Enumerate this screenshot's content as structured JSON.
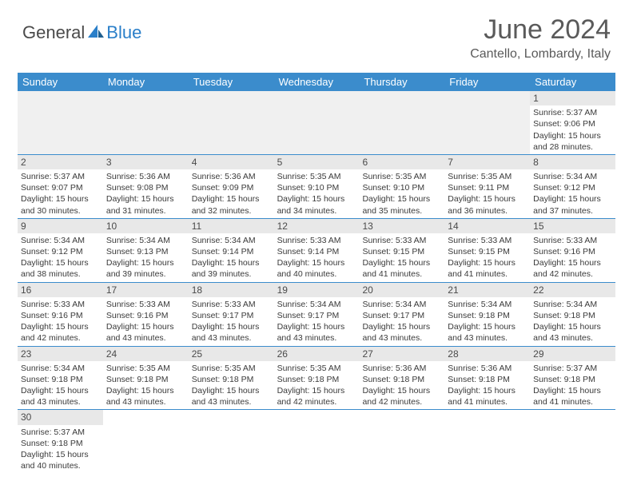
{
  "logo": {
    "text1": "General",
    "text2": "Blue"
  },
  "header": {
    "title": "June 2024",
    "location": "Cantello, Lombardy, Italy"
  },
  "colors": {
    "header_bg": "#3b8ccc",
    "header_text": "#ffffff",
    "day_num_bg": "#e8e8e8",
    "text": "#3a3a3a",
    "border": "#3b8ccc"
  },
  "dayNames": [
    "Sunday",
    "Monday",
    "Tuesday",
    "Wednesday",
    "Thursday",
    "Friday",
    "Saturday"
  ],
  "weeks": [
    [
      null,
      null,
      null,
      null,
      null,
      null,
      {
        "n": "1",
        "sunrise": "Sunrise: 5:37 AM",
        "sunset": "Sunset: 9:06 PM",
        "daylight": "Daylight: 15 hours and 28 minutes."
      }
    ],
    [
      {
        "n": "2",
        "sunrise": "Sunrise: 5:37 AM",
        "sunset": "Sunset: 9:07 PM",
        "daylight": "Daylight: 15 hours and 30 minutes."
      },
      {
        "n": "3",
        "sunrise": "Sunrise: 5:36 AM",
        "sunset": "Sunset: 9:08 PM",
        "daylight": "Daylight: 15 hours and 31 minutes."
      },
      {
        "n": "4",
        "sunrise": "Sunrise: 5:36 AM",
        "sunset": "Sunset: 9:09 PM",
        "daylight": "Daylight: 15 hours and 32 minutes."
      },
      {
        "n": "5",
        "sunrise": "Sunrise: 5:35 AM",
        "sunset": "Sunset: 9:10 PM",
        "daylight": "Daylight: 15 hours and 34 minutes."
      },
      {
        "n": "6",
        "sunrise": "Sunrise: 5:35 AM",
        "sunset": "Sunset: 9:10 PM",
        "daylight": "Daylight: 15 hours and 35 minutes."
      },
      {
        "n": "7",
        "sunrise": "Sunrise: 5:35 AM",
        "sunset": "Sunset: 9:11 PM",
        "daylight": "Daylight: 15 hours and 36 minutes."
      },
      {
        "n": "8",
        "sunrise": "Sunrise: 5:34 AM",
        "sunset": "Sunset: 9:12 PM",
        "daylight": "Daylight: 15 hours and 37 minutes."
      }
    ],
    [
      {
        "n": "9",
        "sunrise": "Sunrise: 5:34 AM",
        "sunset": "Sunset: 9:12 PM",
        "daylight": "Daylight: 15 hours and 38 minutes."
      },
      {
        "n": "10",
        "sunrise": "Sunrise: 5:34 AM",
        "sunset": "Sunset: 9:13 PM",
        "daylight": "Daylight: 15 hours and 39 minutes."
      },
      {
        "n": "11",
        "sunrise": "Sunrise: 5:34 AM",
        "sunset": "Sunset: 9:14 PM",
        "daylight": "Daylight: 15 hours and 39 minutes."
      },
      {
        "n": "12",
        "sunrise": "Sunrise: 5:33 AM",
        "sunset": "Sunset: 9:14 PM",
        "daylight": "Daylight: 15 hours and 40 minutes."
      },
      {
        "n": "13",
        "sunrise": "Sunrise: 5:33 AM",
        "sunset": "Sunset: 9:15 PM",
        "daylight": "Daylight: 15 hours and 41 minutes."
      },
      {
        "n": "14",
        "sunrise": "Sunrise: 5:33 AM",
        "sunset": "Sunset: 9:15 PM",
        "daylight": "Daylight: 15 hours and 41 minutes."
      },
      {
        "n": "15",
        "sunrise": "Sunrise: 5:33 AM",
        "sunset": "Sunset: 9:16 PM",
        "daylight": "Daylight: 15 hours and 42 minutes."
      }
    ],
    [
      {
        "n": "16",
        "sunrise": "Sunrise: 5:33 AM",
        "sunset": "Sunset: 9:16 PM",
        "daylight": "Daylight: 15 hours and 42 minutes."
      },
      {
        "n": "17",
        "sunrise": "Sunrise: 5:33 AM",
        "sunset": "Sunset: 9:16 PM",
        "daylight": "Daylight: 15 hours and 43 minutes."
      },
      {
        "n": "18",
        "sunrise": "Sunrise: 5:33 AM",
        "sunset": "Sunset: 9:17 PM",
        "daylight": "Daylight: 15 hours and 43 minutes."
      },
      {
        "n": "19",
        "sunrise": "Sunrise: 5:34 AM",
        "sunset": "Sunset: 9:17 PM",
        "daylight": "Daylight: 15 hours and 43 minutes."
      },
      {
        "n": "20",
        "sunrise": "Sunrise: 5:34 AM",
        "sunset": "Sunset: 9:17 PM",
        "daylight": "Daylight: 15 hours and 43 minutes."
      },
      {
        "n": "21",
        "sunrise": "Sunrise: 5:34 AM",
        "sunset": "Sunset: 9:18 PM",
        "daylight": "Daylight: 15 hours and 43 minutes."
      },
      {
        "n": "22",
        "sunrise": "Sunrise: 5:34 AM",
        "sunset": "Sunset: 9:18 PM",
        "daylight": "Daylight: 15 hours and 43 minutes."
      }
    ],
    [
      {
        "n": "23",
        "sunrise": "Sunrise: 5:34 AM",
        "sunset": "Sunset: 9:18 PM",
        "daylight": "Daylight: 15 hours and 43 minutes."
      },
      {
        "n": "24",
        "sunrise": "Sunrise: 5:35 AM",
        "sunset": "Sunset: 9:18 PM",
        "daylight": "Daylight: 15 hours and 43 minutes."
      },
      {
        "n": "25",
        "sunrise": "Sunrise: 5:35 AM",
        "sunset": "Sunset: 9:18 PM",
        "daylight": "Daylight: 15 hours and 43 minutes."
      },
      {
        "n": "26",
        "sunrise": "Sunrise: 5:35 AM",
        "sunset": "Sunset: 9:18 PM",
        "daylight": "Daylight: 15 hours and 42 minutes."
      },
      {
        "n": "27",
        "sunrise": "Sunrise: 5:36 AM",
        "sunset": "Sunset: 9:18 PM",
        "daylight": "Daylight: 15 hours and 42 minutes."
      },
      {
        "n": "28",
        "sunrise": "Sunrise: 5:36 AM",
        "sunset": "Sunset: 9:18 PM",
        "daylight": "Daylight: 15 hours and 41 minutes."
      },
      {
        "n": "29",
        "sunrise": "Sunrise: 5:37 AM",
        "sunset": "Sunset: 9:18 PM",
        "daylight": "Daylight: 15 hours and 41 minutes."
      }
    ],
    [
      {
        "n": "30",
        "sunrise": "Sunrise: 5:37 AM",
        "sunset": "Sunset: 9:18 PM",
        "daylight": "Daylight: 15 hours and 40 minutes."
      },
      null,
      null,
      null,
      null,
      null,
      null
    ]
  ]
}
